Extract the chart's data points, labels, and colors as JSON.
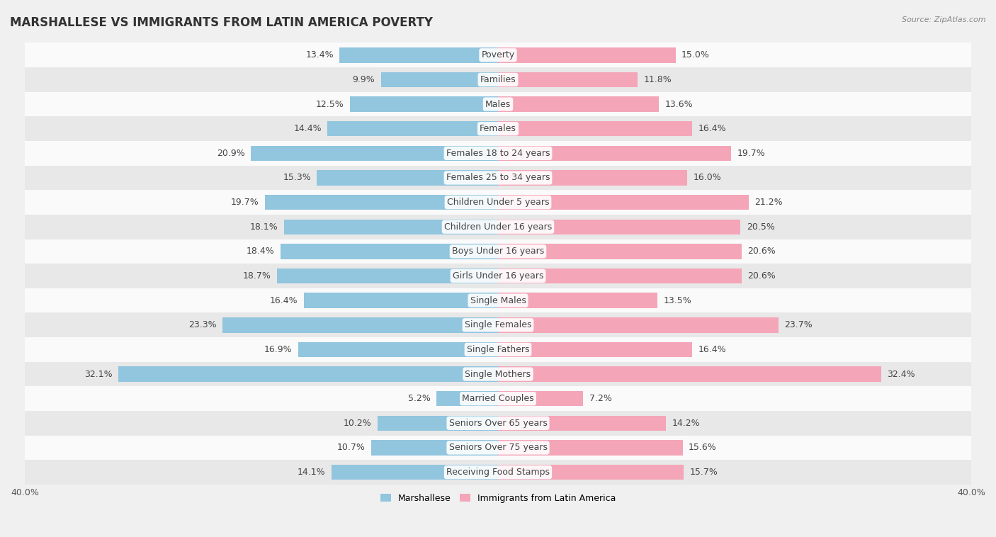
{
  "title": "MARSHALLESE VS IMMIGRANTS FROM LATIN AMERICA POVERTY",
  "source": "Source: ZipAtlas.com",
  "categories": [
    "Poverty",
    "Families",
    "Males",
    "Females",
    "Females 18 to 24 years",
    "Females 25 to 34 years",
    "Children Under 5 years",
    "Children Under 16 years",
    "Boys Under 16 years",
    "Girls Under 16 years",
    "Single Males",
    "Single Females",
    "Single Fathers",
    "Single Mothers",
    "Married Couples",
    "Seniors Over 65 years",
    "Seniors Over 75 years",
    "Receiving Food Stamps"
  ],
  "marshallese": [
    13.4,
    9.9,
    12.5,
    14.4,
    20.9,
    15.3,
    19.7,
    18.1,
    18.4,
    18.7,
    16.4,
    23.3,
    16.9,
    32.1,
    5.2,
    10.2,
    10.7,
    14.1
  ],
  "latin_america": [
    15.0,
    11.8,
    13.6,
    16.4,
    19.7,
    16.0,
    21.2,
    20.5,
    20.6,
    20.6,
    13.5,
    23.7,
    16.4,
    32.4,
    7.2,
    14.2,
    15.6,
    15.7
  ],
  "marshallese_color": "#92c5de",
  "latin_america_color": "#f4a5b8",
  "background_color": "#f0f0f0",
  "row_color_light": "#fafafa",
  "row_color_dark": "#e8e8e8",
  "xlim": 40.0,
  "label_fontsize": 9,
  "title_fontsize": 12,
  "bar_height": 0.62,
  "legend_label_marshallese": "Marshallese",
  "legend_label_latin": "Immigrants from Latin America"
}
